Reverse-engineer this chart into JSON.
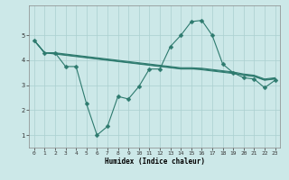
{
  "title": "",
  "xlabel": "Humidex (Indice chaleur)",
  "ylabel": "",
  "xlim": [
    -0.5,
    23.5
  ],
  "ylim": [
    0.5,
    6.2
  ],
  "yticks": [
    1,
    2,
    3,
    4,
    5
  ],
  "xticks": [
    0,
    1,
    2,
    3,
    4,
    5,
    6,
    7,
    8,
    9,
    10,
    11,
    12,
    13,
    14,
    15,
    16,
    17,
    18,
    19,
    20,
    21,
    22,
    23
  ],
  "bg_color": "#cce8e8",
  "line_color": "#2d7a6e",
  "grid_color": "#aacfcf",
  "series": [
    {
      "x": [
        0,
        1,
        2,
        3,
        4,
        5,
        6,
        7,
        8,
        9,
        10,
        11,
        12,
        13,
        14,
        15,
        16,
        17,
        18,
        19,
        20,
        21,
        22,
        23
      ],
      "y": [
        4.8,
        4.3,
        4.3,
        3.75,
        3.75,
        2.25,
        1.0,
        1.35,
        2.55,
        2.45,
        2.95,
        3.65,
        3.65,
        4.55,
        5.0,
        5.55,
        5.6,
        5.0,
        3.85,
        3.5,
        3.3,
        3.25,
        2.9,
        3.2
      ],
      "marker": "D",
      "markersize": 2.5
    },
    {
      "x": [
        0,
        1,
        2,
        3,
        4,
        5,
        6,
        7,
        8,
        9,
        10,
        11,
        12,
        13,
        14,
        15,
        16,
        17,
        18,
        19,
        20,
        21,
        22,
        23
      ],
      "y": [
        4.8,
        4.3,
        4.25,
        4.2,
        4.15,
        4.1,
        4.05,
        4.0,
        3.95,
        3.9,
        3.85,
        3.8,
        3.75,
        3.7,
        3.65,
        3.65,
        3.65,
        3.6,
        3.55,
        3.5,
        3.4,
        3.35,
        3.2,
        3.25
      ],
      "marker": null,
      "markersize": 0
    },
    {
      "x": [
        0,
        1,
        2,
        3,
        4,
        5,
        6,
        7,
        8,
        9,
        10,
        11,
        12,
        13,
        14,
        15,
        16,
        17,
        18,
        19,
        20,
        21,
        22,
        23
      ],
      "y": [
        4.8,
        4.3,
        4.28,
        4.22,
        4.17,
        4.12,
        4.07,
        4.02,
        3.97,
        3.92,
        3.87,
        3.82,
        3.77,
        3.72,
        3.67,
        3.67,
        3.62,
        3.57,
        3.52,
        3.47,
        3.42,
        3.37,
        3.22,
        3.27
      ],
      "marker": null,
      "markersize": 0
    },
    {
      "x": [
        0,
        1,
        2,
        3,
        4,
        5,
        6,
        7,
        8,
        9,
        10,
        11,
        12,
        13,
        14,
        15,
        16,
        17,
        18,
        19,
        20,
        21,
        22,
        23
      ],
      "y": [
        4.8,
        4.3,
        4.3,
        4.25,
        4.2,
        4.15,
        4.1,
        4.05,
        4.0,
        3.95,
        3.9,
        3.85,
        3.8,
        3.75,
        3.7,
        3.7,
        3.68,
        3.63,
        3.58,
        3.53,
        3.45,
        3.4,
        3.25,
        3.3
      ],
      "marker": null,
      "markersize": 0
    }
  ]
}
